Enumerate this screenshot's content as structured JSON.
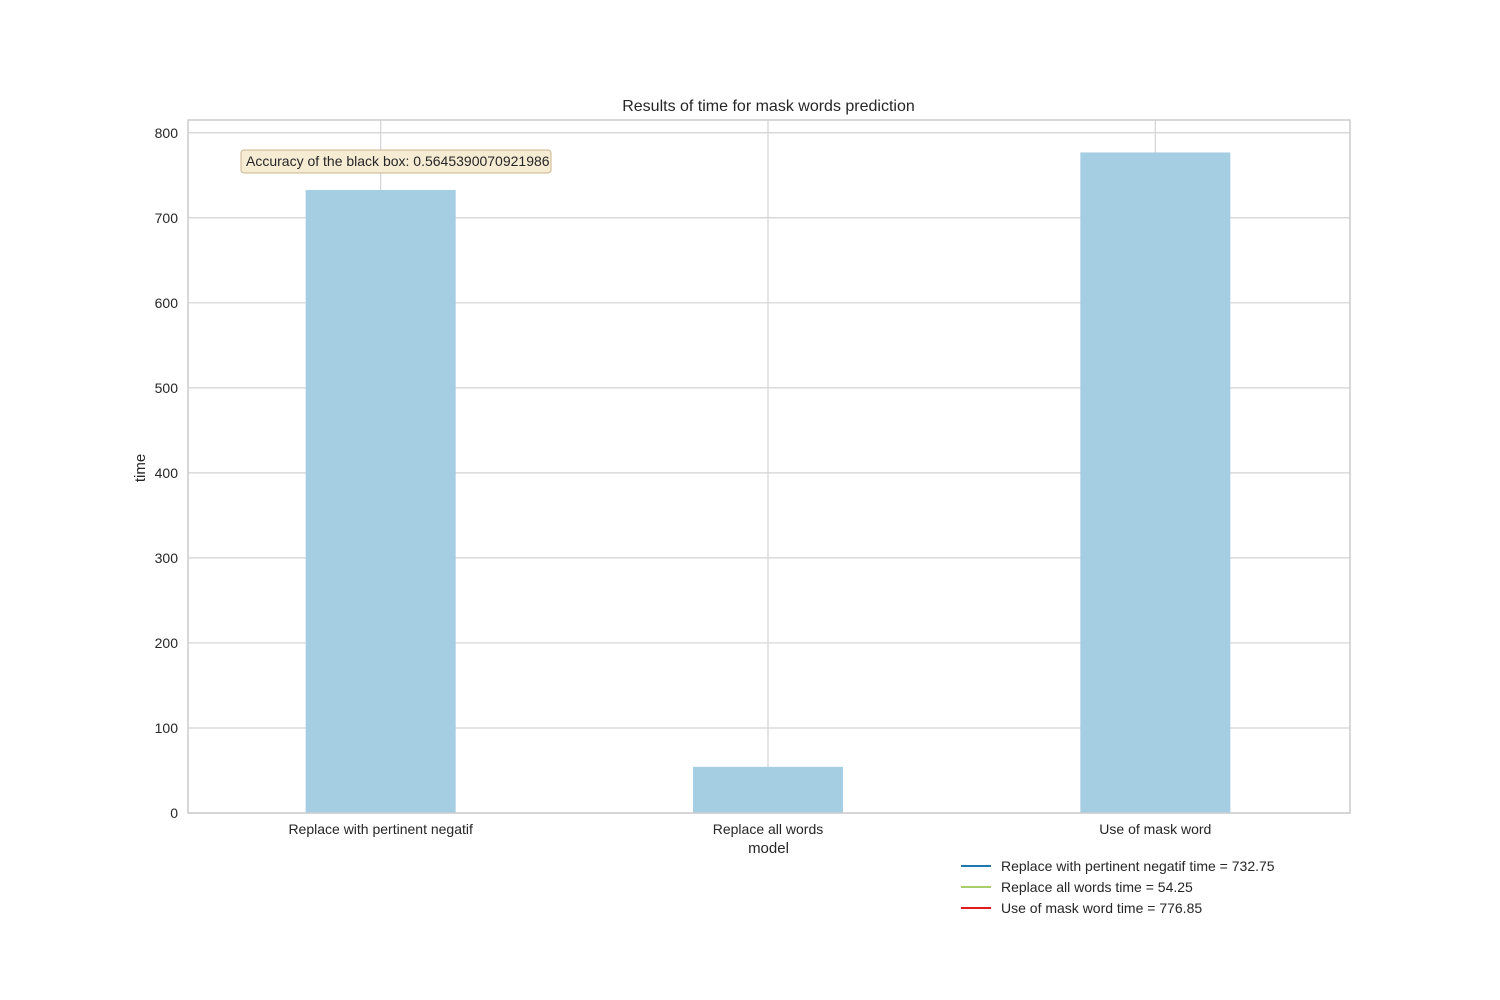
{
  "chart_data": {
    "type": "bar",
    "title": "Results of time for mask words prediction",
    "xlabel": "model",
    "ylabel": "time",
    "categories": [
      "Replace with pertinent negatif",
      "Replace all words",
      "Use of mask word"
    ],
    "values": [
      732.75,
      54.25,
      776.85
    ],
    "ylim": [
      0,
      815
    ],
    "yticks": [
      0,
      100,
      200,
      300,
      400,
      500,
      600,
      700,
      800
    ],
    "grid": true,
    "bar_color": "#a6cee3",
    "annotation": {
      "text": "Accuracy of the black box: 0.5645390070921986",
      "placement": "top-left"
    },
    "legend": {
      "placement": "below-right",
      "entries": [
        {
          "label": "Replace with pertinent negatif time = 732.75",
          "color": "#1f77b4"
        },
        {
          "label": "Replace all words time = 54.25",
          "color": "#a6cf6a"
        },
        {
          "label": "Use of mask word time = 776.85",
          "color": "#e31a1c"
        }
      ]
    }
  }
}
